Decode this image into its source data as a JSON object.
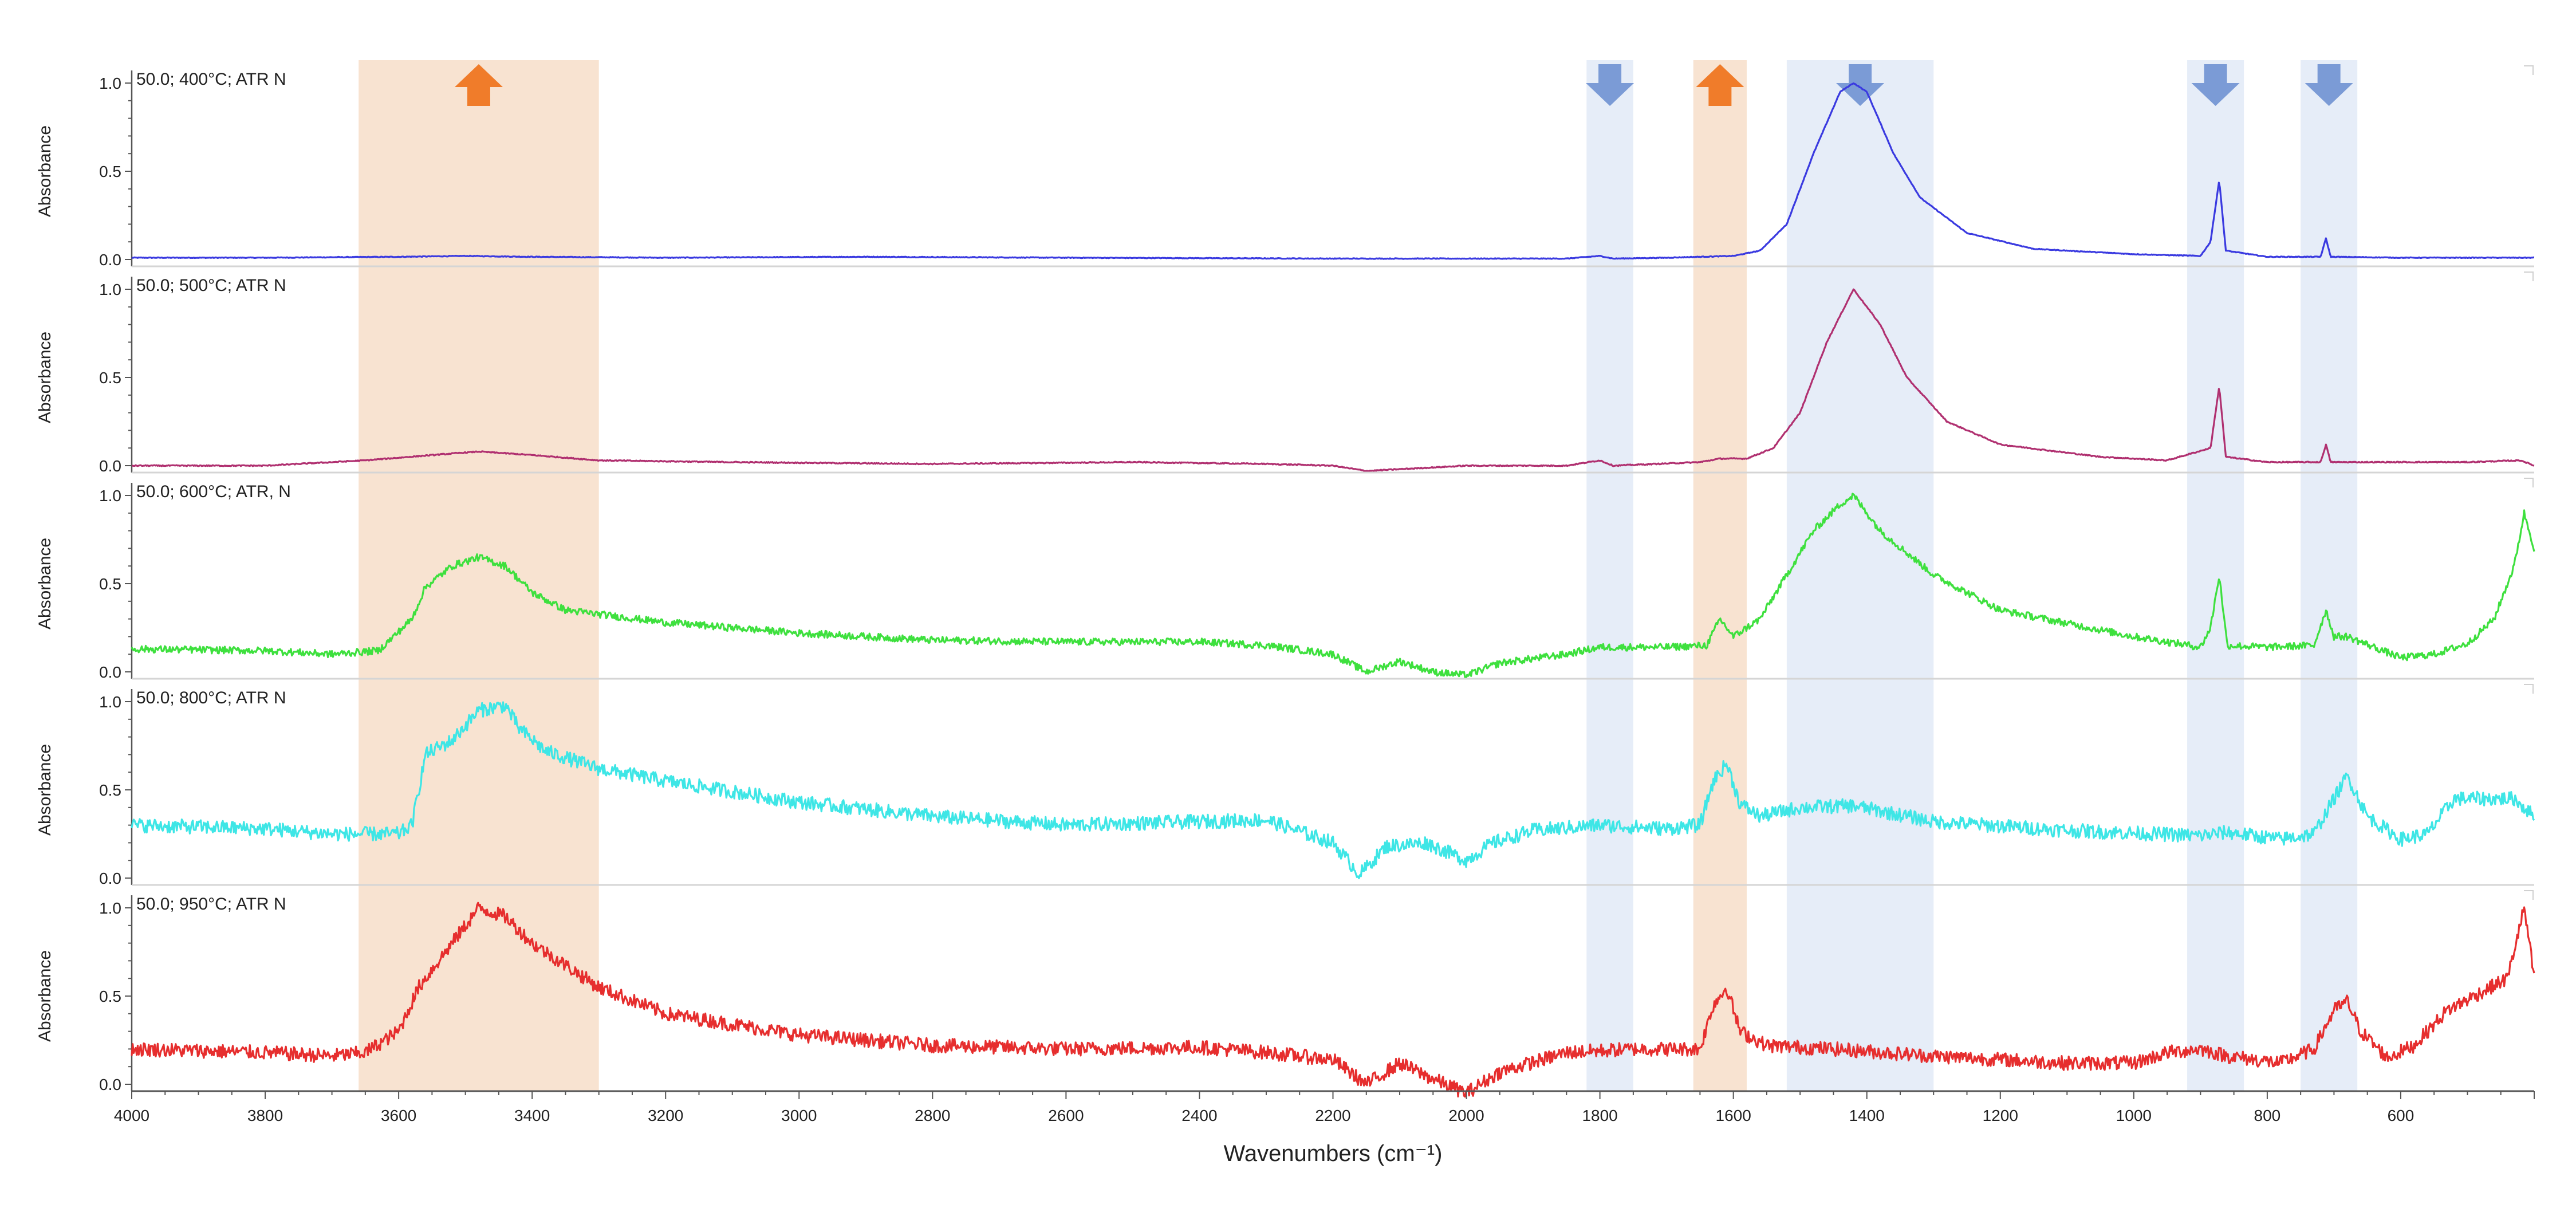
{
  "chart_data": {
    "type": "line",
    "x_axis": {
      "label": "Wavenumbers (cm⁻¹)",
      "range": [
        4000,
        400
      ],
      "ticks": [
        4000,
        3800,
        3600,
        3400,
        3200,
        3000,
        2800,
        2600,
        2400,
        2200,
        2000,
        1800,
        1600,
        1400,
        1200,
        1000,
        800,
        600
      ]
    },
    "y_axis": {
      "label": "Absorbance",
      "range": [
        0,
        1.0
      ],
      "ticks": [
        "0.0",
        "0.5",
        "1.0"
      ]
    },
    "highlight_bands": [
      {
        "from": 3660,
        "to": 3300,
        "color": "#f8e3d1",
        "arrow": "up",
        "arrow_color": "#f07c2a"
      },
      {
        "from": 1820,
        "to": 1750,
        "color": "#e6edf8",
        "arrow": "down",
        "arrow_color": "#7b9bd6"
      },
      {
        "from": 1660,
        "to": 1580,
        "color": "#f8e3d1",
        "arrow": "up",
        "arrow_color": "#f07c2a"
      },
      {
        "from": 1520,
        "to": 1300,
        "color": "#e6edf8",
        "arrow": "down",
        "arrow_color": "#7b9bd6"
      },
      {
        "from": 920,
        "to": 835,
        "color": "#e6edf8",
        "arrow": "down",
        "arrow_color": "#7b9bd6"
      },
      {
        "from": 750,
        "to": 665,
        "color": "#e6edf8",
        "arrow": "down",
        "arrow_color": "#7b9bd6"
      }
    ],
    "series": [
      {
        "name": "50.0; 400°C; ATR N",
        "color": "#3a3ae0",
        "noise": 0.002,
        "points": [
          [
            4000,
            0.01
          ],
          [
            3800,
            0.01
          ],
          [
            3600,
            0.015
          ],
          [
            3500,
            0.02
          ],
          [
            3400,
            0.015
          ],
          [
            3200,
            0.01
          ],
          [
            2900,
            0.015
          ],
          [
            2600,
            0.01
          ],
          [
            2200,
            0.005
          ],
          [
            2000,
            0.005
          ],
          [
            1850,
            0.005
          ],
          [
            1800,
            0.02
          ],
          [
            1780,
            0.005
          ],
          [
            1700,
            0.01
          ],
          [
            1600,
            0.02
          ],
          [
            1560,
            0.05
          ],
          [
            1520,
            0.2
          ],
          [
            1480,
            0.6
          ],
          [
            1440,
            0.95
          ],
          [
            1420,
            1.0
          ],
          [
            1400,
            0.95
          ],
          [
            1360,
            0.6
          ],
          [
            1320,
            0.35
          ],
          [
            1250,
            0.15
          ],
          [
            1150,
            0.06
          ],
          [
            1000,
            0.03
          ],
          [
            900,
            0.02
          ],
          [
            885,
            0.1
          ],
          [
            872,
            0.45
          ],
          [
            862,
            0.05
          ],
          [
            800,
            0.015
          ],
          [
            720,
            0.015
          ],
          [
            712,
            0.12
          ],
          [
            705,
            0.015
          ],
          [
            600,
            0.01
          ],
          [
            500,
            0.01
          ],
          [
            400,
            0.01
          ]
        ]
      },
      {
        "name": "50.0; 500°C; ATR N",
        "color": "#b03070",
        "noise": 0.003,
        "points": [
          [
            4000,
            0.0
          ],
          [
            3800,
            0.0
          ],
          [
            3650,
            0.03
          ],
          [
            3550,
            0.06
          ],
          [
            3480,
            0.08
          ],
          [
            3400,
            0.06
          ],
          [
            3300,
            0.03
          ],
          [
            3100,
            0.02
          ],
          [
            2800,
            0.01
          ],
          [
            2500,
            0.02
          ],
          [
            2300,
            0.01
          ],
          [
            2200,
            0.0
          ],
          [
            2150,
            -0.03
          ],
          [
            2000,
            0.0
          ],
          [
            1850,
            0.0
          ],
          [
            1800,
            0.03
          ],
          [
            1780,
            0.0
          ],
          [
            1650,
            0.02
          ],
          [
            1620,
            0.04
          ],
          [
            1580,
            0.04
          ],
          [
            1540,
            0.1
          ],
          [
            1500,
            0.3
          ],
          [
            1460,
            0.7
          ],
          [
            1420,
            1.0
          ],
          [
            1380,
            0.8
          ],
          [
            1340,
            0.5
          ],
          [
            1280,
            0.25
          ],
          [
            1200,
            0.12
          ],
          [
            1050,
            0.05
          ],
          [
            950,
            0.03
          ],
          [
            885,
            0.1
          ],
          [
            872,
            0.45
          ],
          [
            862,
            0.05
          ],
          [
            800,
            0.02
          ],
          [
            720,
            0.02
          ],
          [
            712,
            0.12
          ],
          [
            705,
            0.02
          ],
          [
            600,
            0.02
          ],
          [
            500,
            0.02
          ],
          [
            420,
            0.03
          ],
          [
            400,
            0.0
          ]
        ]
      },
      {
        "name": "50.0; 600°C; ATR, N",
        "color": "#3ee03e",
        "noise": 0.02,
        "points": [
          [
            4000,
            0.13
          ],
          [
            3800,
            0.12
          ],
          [
            3700,
            0.1
          ],
          [
            3630,
            0.12
          ],
          [
            3580,
            0.3
          ],
          [
            3560,
            0.48
          ],
          [
            3520,
            0.6
          ],
          [
            3480,
            0.65
          ],
          [
            3440,
            0.6
          ],
          [
            3400,
            0.45
          ],
          [
            3350,
            0.35
          ],
          [
            3200,
            0.28
          ],
          [
            3000,
            0.22
          ],
          [
            2800,
            0.18
          ],
          [
            2600,
            0.17
          ],
          [
            2400,
            0.17
          ],
          [
            2300,
            0.15
          ],
          [
            2200,
            0.1
          ],
          [
            2150,
            0.0
          ],
          [
            2100,
            0.06
          ],
          [
            2050,
            0.0
          ],
          [
            2000,
            -0.02
          ],
          [
            1950,
            0.05
          ],
          [
            1850,
            0.1
          ],
          [
            1800,
            0.14
          ],
          [
            1700,
            0.14
          ],
          [
            1640,
            0.15
          ],
          [
            1620,
            0.3
          ],
          [
            1600,
            0.2
          ],
          [
            1560,
            0.3
          ],
          [
            1520,
            0.55
          ],
          [
            1480,
            0.8
          ],
          [
            1440,
            0.95
          ],
          [
            1420,
            1.0
          ],
          [
            1380,
            0.8
          ],
          [
            1300,
            0.55
          ],
          [
            1200,
            0.35
          ],
          [
            1000,
            0.2
          ],
          [
            900,
            0.14
          ],
          [
            885,
            0.25
          ],
          [
            872,
            0.55
          ],
          [
            860,
            0.15
          ],
          [
            800,
            0.14
          ],
          [
            730,
            0.15
          ],
          [
            712,
            0.35
          ],
          [
            700,
            0.2
          ],
          [
            680,
            0.2
          ],
          [
            600,
            0.08
          ],
          [
            550,
            0.1
          ],
          [
            500,
            0.16
          ],
          [
            460,
            0.3
          ],
          [
            430,
            0.6
          ],
          [
            415,
            0.9
          ],
          [
            400,
            0.7
          ]
        ]
      },
      {
        "name": "50.0; 800°C; ATR N",
        "color": "#3ee6e6",
        "noise": 0.04,
        "points": [
          [
            4000,
            0.3
          ],
          [
            3800,
            0.28
          ],
          [
            3700,
            0.25
          ],
          [
            3600,
            0.25
          ],
          [
            3580,
            0.3
          ],
          [
            3560,
            0.7
          ],
          [
            3520,
            0.78
          ],
          [
            3480,
            0.95
          ],
          [
            3440,
            0.98
          ],
          [
            3420,
            0.85
          ],
          [
            3380,
            0.72
          ],
          [
            3300,
            0.62
          ],
          [
            3200,
            0.55
          ],
          [
            3000,
            0.43
          ],
          [
            2800,
            0.35
          ],
          [
            2600,
            0.3
          ],
          [
            2400,
            0.32
          ],
          [
            2300,
            0.33
          ],
          [
            2200,
            0.2
          ],
          [
            2160,
            0.02
          ],
          [
            2120,
            0.18
          ],
          [
            2060,
            0.2
          ],
          [
            2000,
            0.1
          ],
          [
            1960,
            0.2
          ],
          [
            1900,
            0.27
          ],
          [
            1800,
            0.3
          ],
          [
            1700,
            0.28
          ],
          [
            1650,
            0.3
          ],
          [
            1630,
            0.55
          ],
          [
            1610,
            0.65
          ],
          [
            1590,
            0.42
          ],
          [
            1560,
            0.35
          ],
          [
            1500,
            0.4
          ],
          [
            1420,
            0.41
          ],
          [
            1300,
            0.32
          ],
          [
            1100,
            0.27
          ],
          [
            900,
            0.24
          ],
          [
            860,
            0.26
          ],
          [
            780,
            0.22
          ],
          [
            730,
            0.25
          ],
          [
            700,
            0.45
          ],
          [
            680,
            0.58
          ],
          [
            650,
            0.35
          ],
          [
            600,
            0.22
          ],
          [
            560,
            0.25
          ],
          [
            520,
            0.45
          ],
          [
            480,
            0.45
          ],
          [
            430,
            0.45
          ],
          [
            400,
            0.35
          ]
        ]
      },
      {
        "name": "50.0; 950°C; ATR N",
        "color": "#e62e2e",
        "noise": 0.04,
        "points": [
          [
            4000,
            0.2
          ],
          [
            3800,
            0.18
          ],
          [
            3700,
            0.16
          ],
          [
            3650,
            0.18
          ],
          [
            3600,
            0.3
          ],
          [
            3570,
            0.55
          ],
          [
            3540,
            0.7
          ],
          [
            3500,
            0.9
          ],
          [
            3480,
            1.0
          ],
          [
            3440,
            0.95
          ],
          [
            3400,
            0.8
          ],
          [
            3300,
            0.55
          ],
          [
            3200,
            0.4
          ],
          [
            3000,
            0.28
          ],
          [
            2800,
            0.22
          ],
          [
            2600,
            0.2
          ],
          [
            2400,
            0.21
          ],
          [
            2300,
            0.18
          ],
          [
            2200,
            0.14
          ],
          [
            2150,
            0.0
          ],
          [
            2100,
            0.12
          ],
          [
            2050,
            0.03
          ],
          [
            2000,
            -0.05
          ],
          [
            1950,
            0.07
          ],
          [
            1850,
            0.18
          ],
          [
            1750,
            0.2
          ],
          [
            1650,
            0.2
          ],
          [
            1630,
            0.45
          ],
          [
            1610,
            0.55
          ],
          [
            1590,
            0.3
          ],
          [
            1550,
            0.22
          ],
          [
            1450,
            0.2
          ],
          [
            1300,
            0.16
          ],
          [
            1100,
            0.12
          ],
          [
            1000,
            0.12
          ],
          [
            950,
            0.18
          ],
          [
            900,
            0.2
          ],
          [
            860,
            0.16
          ],
          [
            780,
            0.12
          ],
          [
            730,
            0.2
          ],
          [
            700,
            0.42
          ],
          [
            680,
            0.47
          ],
          [
            660,
            0.3
          ],
          [
            620,
            0.15
          ],
          [
            580,
            0.22
          ],
          [
            530,
            0.42
          ],
          [
            480,
            0.52
          ],
          [
            440,
            0.6
          ],
          [
            415,
            1.0
          ],
          [
            400,
            0.6
          ]
        ]
      }
    ]
  }
}
